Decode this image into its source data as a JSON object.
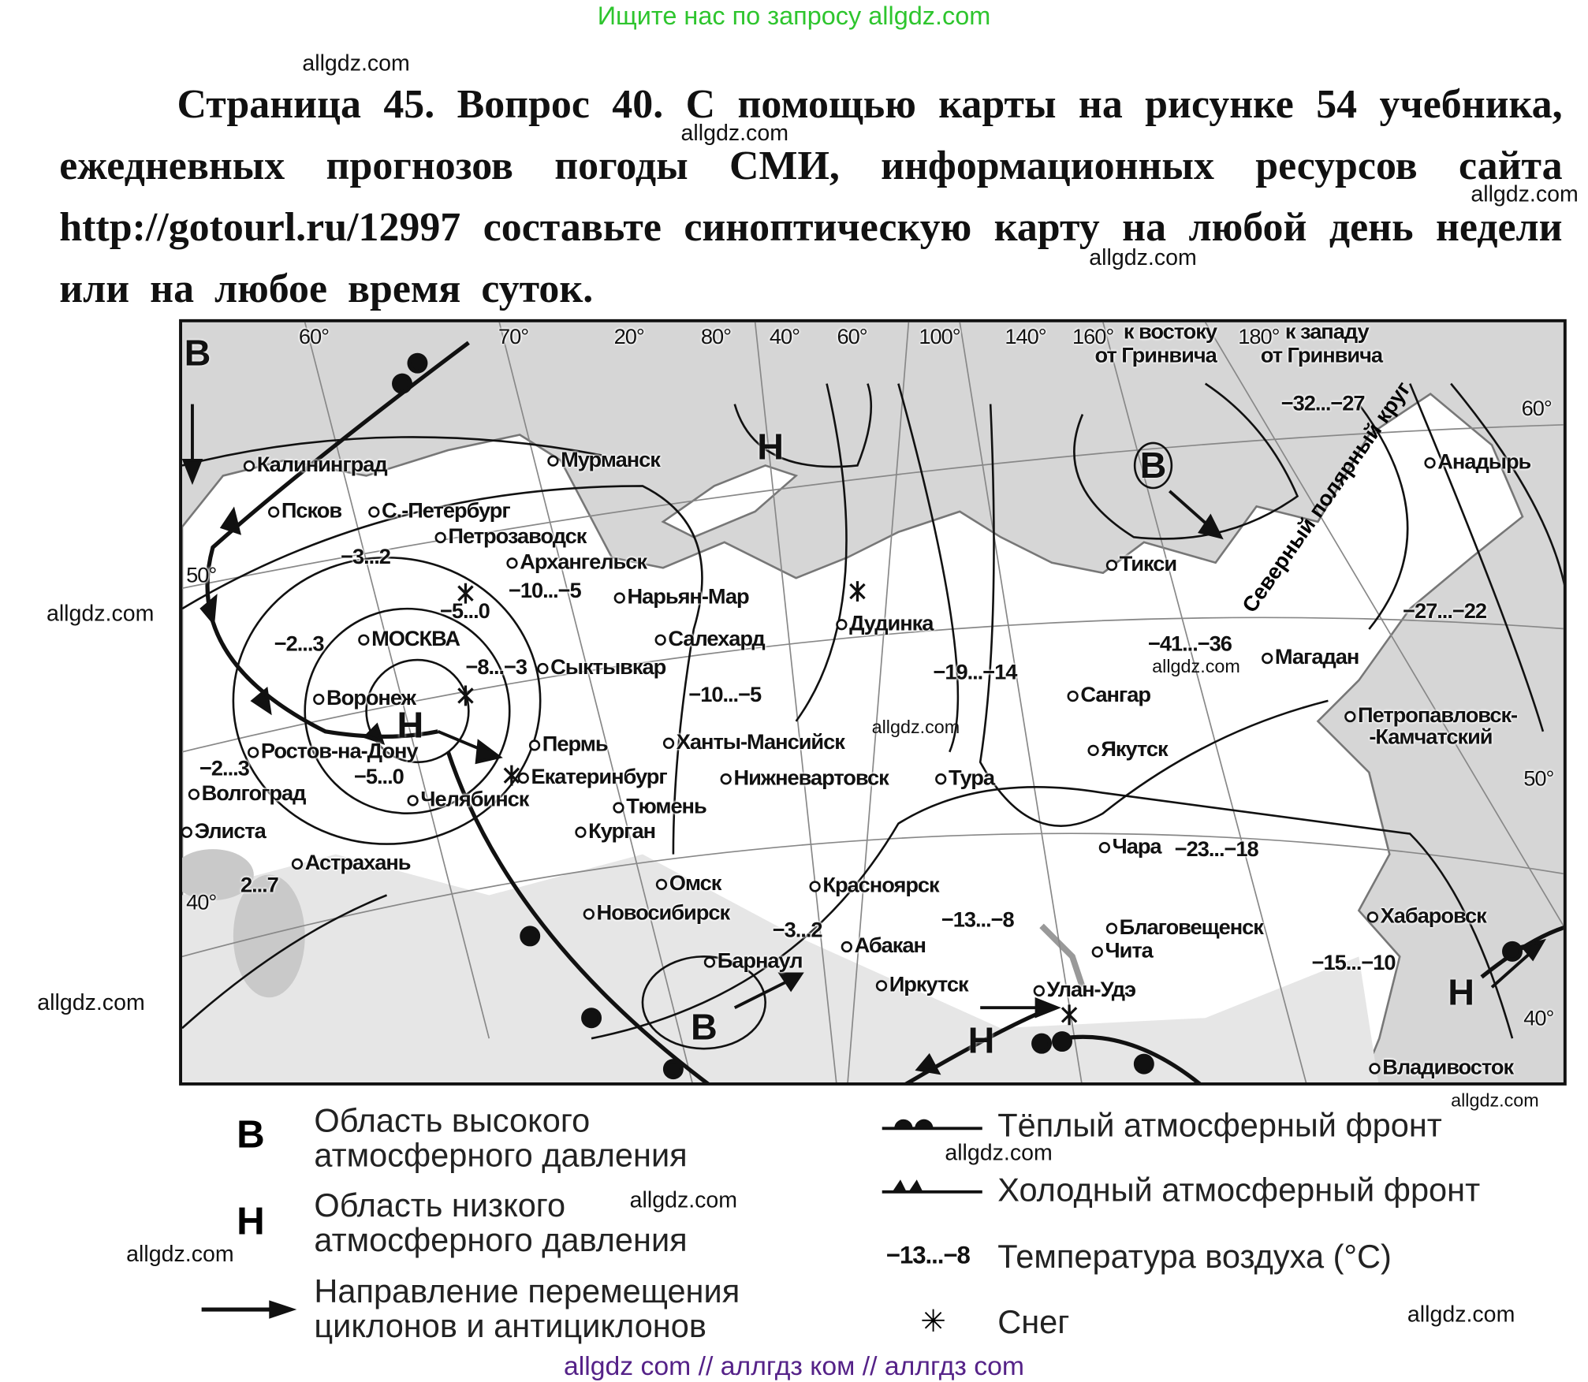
{
  "banner": "Ищите нас по запросу allgdz.com",
  "title": "Страница 45. Вопрос 40. С помощью карты на рисунке 54 учебника, ежедневных прогнозов погоды СМИ, информационных ресурсов сайта http://gotourl.ru/12997 составьте синоптическую карту на любой день недели или на любое время суток.",
  "watermark": "allgdz.com",
  "footer": "allgdz com  //  аллгдз ком  //  аллгдз com",
  "map": {
    "degrees": [
      "60°",
      "70°",
      "20°",
      "80°",
      "40°",
      "60°",
      "100°",
      "140°",
      "160°",
      "180°",
      "60°",
      "50°",
      "50°",
      "40°",
      "40°"
    ],
    "east_label": [
      "к востоку",
      "от Гринвича"
    ],
    "west_label": [
      "к западу",
      "от Гринвича"
    ],
    "arctic_circle": "Северный полярный круг",
    "high": "В",
    "low": "Н",
    "cities": [
      "Калининград",
      "Псков",
      "С.-Петербург",
      "Петрозаводск",
      "Архангельск",
      "Мурманск",
      "Нарьян-Мар",
      "МОСКВА",
      "Сыктывкар",
      "Воронеж",
      "Салехард",
      "Ростов-на-Дону",
      "Пермь",
      "Екатеринбург",
      "Ханты-Мансийск",
      "Нижневартовск",
      "Волгоград",
      "Челябинск",
      "Тюмень",
      "Курган",
      "Элиста",
      "Астрахань",
      "Омск",
      "Новосибирск",
      "Барнаул",
      "Красноярск",
      "Абакан",
      "Иркутск",
      "Улан-Удэ",
      "Чита",
      "Благовещенск",
      "Хабаровск",
      "Владивосток",
      "Чара",
      "Тура",
      "Якутск",
      "Сангар",
      "Магадан",
      "Петропавловск-",
      "-Камчатский",
      "Анадырь",
      "Тикси",
      "Дудинка"
    ],
    "temperatures": [
      "−3...2",
      "−10...−5",
      "−5...0",
      "−2...3",
      "−8...−3",
      "−10...−5",
      "−2...3",
      "−5...0",
      "2...7",
      "−3...2",
      "−13...−8",
      "−19...−14",
      "−41...−36",
      "−23...−18",
      "−15...−10",
      "−27...−22",
      "−32...−27"
    ]
  },
  "legend": {
    "high_symbol": "В",
    "high_text": [
      "Область высокого",
      "атмосферного давления"
    ],
    "low_symbol": "Н",
    "low_text": [
      "Область низкого",
      "атмосферного давления"
    ],
    "movement_text": [
      "Направление перемещения",
      "циклонов и антициклонов"
    ],
    "warm_front": "Тёплый атмосферный фронт",
    "cold_front": "Холодный атмосферный фронт",
    "temp_sample": "−13...−8",
    "temp_text": "Температура воздуха (°C)",
    "snow_symbol": "✳",
    "snow_text": "Снег"
  }
}
